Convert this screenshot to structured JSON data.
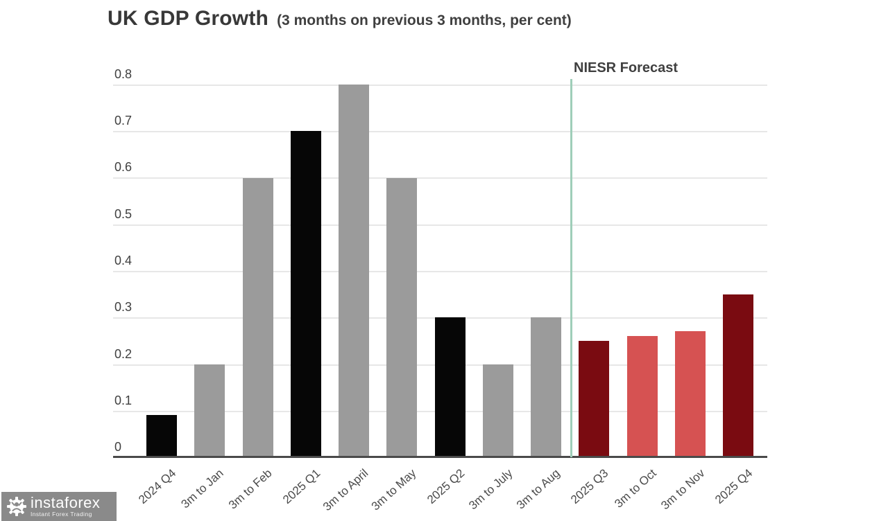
{
  "header": {
    "title": "UK GDP Growth",
    "subtitle": "(3 months on previous 3 months, per cent)"
  },
  "annotation": {
    "forecast_label": "NIESR Forecast"
  },
  "watermark": {
    "brand": "instaforex",
    "tagline": "Instant Forex Trading",
    "icon": "gear-person-icon",
    "background_color": "#8a8a8a",
    "text_color": "#ffffff"
  },
  "colors": {
    "actual_quarter_bar": "#060606",
    "actual_month_bar": "#9b9b9b",
    "forecast_quarter_bar": "#7a0b11",
    "forecast_month_bar": "#d65252",
    "forecast_divider_line": "#9fceb9",
    "gridline": "#e7e7e7",
    "axis": "#4a4a4a",
    "text": "#3f3f3f"
  },
  "chart_data": {
    "type": "bar",
    "title": "UK GDP Growth (3 months on previous 3 months, per cent)",
    "xlabel": "",
    "ylabel": "",
    "categories": [
      "2024 Q4",
      "3m to Jan",
      "3m to Feb",
      "2025 Q1",
      "3m to April",
      "3m to May",
      "2025 Q2",
      "3m to July",
      "3m to Aug",
      "2025 Q3",
      "3m to Oct",
      "3m to Nov",
      "2025 Q4"
    ],
    "values": [
      0.09,
      0.2,
      0.6,
      0.7,
      0.8,
      0.6,
      0.3,
      0.2,
      0.3,
      0.25,
      0.26,
      0.27,
      0.35
    ],
    "bar_color_roles": [
      "actual_quarter_bar",
      "actual_month_bar",
      "actual_month_bar",
      "actual_quarter_bar",
      "actual_month_bar",
      "actual_month_bar",
      "actual_quarter_bar",
      "actual_month_bar",
      "actual_month_bar",
      "forecast_quarter_bar",
      "forecast_month_bar",
      "forecast_month_bar",
      "forecast_quarter_bar"
    ],
    "forecast_start_category": "2025 Q3",
    "forecast_annotation": "NIESR Forecast",
    "ylim": [
      0,
      0.8
    ],
    "ytick_labels": [
      "0",
      "0.1",
      "0.2",
      "0.3",
      "0.4",
      "0.5",
      "0.6",
      "0.7",
      "0.8"
    ],
    "ytick_step": 0.1,
    "grid": true,
    "legend": "none",
    "x_tick_rotation_deg": 42
  }
}
